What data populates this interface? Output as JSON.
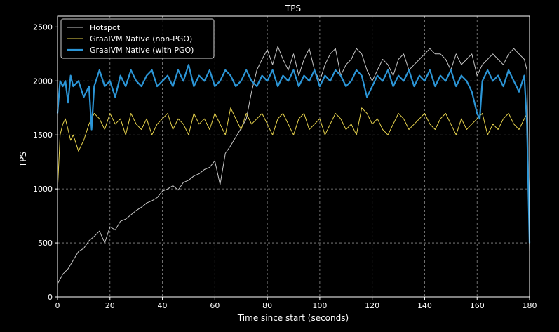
{
  "chart_data": {
    "type": "line",
    "title": "TPS",
    "xlabel": "Time since start (seconds)",
    "ylabel": "TPS",
    "xlim": [
      0,
      180
    ],
    "ylim": [
      0,
      2600
    ],
    "xticks": [
      0,
      20,
      40,
      60,
      80,
      100,
      120,
      140,
      160,
      180
    ],
    "yticks": [
      0,
      500,
      1000,
      1500,
      2000,
      2500
    ],
    "grid": true,
    "legend_position": "top-left",
    "series": [
      {
        "name": "Hotspot",
        "color": "#c8c8c8",
        "x": [
          0,
          2,
          4,
          6,
          8,
          10,
          12,
          14,
          16,
          18,
          20,
          22,
          24,
          26,
          28,
          30,
          32,
          34,
          36,
          38,
          40,
          42,
          44,
          46,
          48,
          50,
          52,
          54,
          56,
          58,
          60,
          62,
          64,
          66,
          68,
          70,
          72,
          74,
          76,
          78,
          80,
          82,
          84,
          86,
          88,
          90,
          92,
          94,
          96,
          98,
          100,
          102,
          104,
          106,
          108,
          110,
          112,
          114,
          116,
          118,
          120,
          122,
          124,
          126,
          128,
          130,
          132,
          134,
          136,
          138,
          140,
          142,
          144,
          146,
          148,
          150,
          152,
          154,
          156,
          158,
          160,
          162,
          164,
          166,
          168,
          170,
          172,
          174,
          176,
          178,
          179,
          180
        ],
        "values": [
          120,
          210,
          260,
          340,
          420,
          450,
          520,
          560,
          610,
          500,
          650,
          620,
          700,
          720,
          760,
          800,
          830,
          870,
          890,
          920,
          980,
          1000,
          1030,
          990,
          1060,
          1080,
          1120,
          1140,
          1180,
          1200,
          1260,
          1040,
          1330,
          1400,
          1480,
          1560,
          1650,
          1900,
          2100,
          2200,
          2290,
          2150,
          2320,
          2200,
          2100,
          2250,
          2050,
          2200,
          2300,
          2100,
          2000,
          2150,
          2250,
          2300,
          2050,
          2150,
          2200,
          2300,
          2250,
          2100,
          2000,
          2100,
          2200,
          2150,
          2050,
          2200,
          2250,
          2100,
          2150,
          2200,
          2250,
          2300,
          2250,
          2250,
          2200,
          2100,
          2250,
          2150,
          2200,
          2250,
          2050,
          2150,
          2200,
          2250,
          2200,
          2150,
          2250,
          2300,
          2250,
          2200,
          2100,
          420
        ]
      },
      {
        "name": "GraalVM Native (non-PGO)",
        "color": "#e8d44d",
        "x": [
          0,
          1,
          2,
          3,
          4,
          5,
          6,
          8,
          10,
          12,
          14,
          16,
          18,
          20,
          22,
          24,
          26,
          28,
          30,
          32,
          34,
          36,
          38,
          40,
          42,
          44,
          46,
          48,
          50,
          52,
          54,
          56,
          58,
          60,
          62,
          64,
          66,
          68,
          70,
          72,
          74,
          76,
          78,
          80,
          82,
          84,
          86,
          88,
          90,
          92,
          94,
          96,
          98,
          100,
          102,
          104,
          106,
          108,
          110,
          112,
          114,
          116,
          118,
          120,
          122,
          124,
          126,
          128,
          130,
          132,
          134,
          136,
          138,
          140,
          142,
          144,
          146,
          148,
          150,
          152,
          154,
          156,
          158,
          160,
          162,
          164,
          166,
          168,
          170,
          172,
          174,
          176,
          178,
          179,
          180
        ],
        "values": [
          980,
          1500,
          1600,
          1650,
          1550,
          1450,
          1500,
          1350,
          1450,
          1600,
          1700,
          1650,
          1550,
          1700,
          1600,
          1650,
          1500,
          1700,
          1600,
          1550,
          1650,
          1500,
          1600,
          1650,
          1700,
          1550,
          1650,
          1600,
          1500,
          1700,
          1600,
          1650,
          1550,
          1700,
          1600,
          1500,
          1750,
          1650,
          1550,
          1700,
          1600,
          1650,
          1700,
          1600,
          1500,
          1650,
          1700,
          1600,
          1500,
          1650,
          1700,
          1550,
          1600,
          1650,
          1500,
          1600,
          1700,
          1650,
          1550,
          1600,
          1500,
          1750,
          1700,
          1600,
          1650,
          1550,
          1500,
          1600,
          1700,
          1650,
          1550,
          1600,
          1650,
          1700,
          1600,
          1550,
          1650,
          1700,
          1600,
          1500,
          1650,
          1550,
          1600,
          1650,
          1700,
          1500,
          1600,
          1550,
          1650,
          1700,
          1600,
          1550,
          1650,
          1700,
          500
        ]
      },
      {
        "name": "GraalVM Native (with PGO)",
        "color": "#2b95d6",
        "x": [
          0,
          1,
          2,
          3,
          4,
          5,
          6,
          8,
          10,
          12,
          13,
          14,
          16,
          18,
          20,
          22,
          24,
          26,
          28,
          30,
          32,
          34,
          36,
          38,
          40,
          42,
          44,
          46,
          48,
          50,
          52,
          54,
          56,
          58,
          60,
          62,
          64,
          66,
          68,
          70,
          72,
          74,
          76,
          78,
          80,
          82,
          84,
          86,
          88,
          90,
          92,
          94,
          96,
          98,
          100,
          102,
          104,
          106,
          108,
          110,
          112,
          114,
          116,
          118,
          120,
          122,
          124,
          126,
          128,
          130,
          132,
          134,
          136,
          138,
          140,
          142,
          144,
          146,
          148,
          150,
          152,
          154,
          156,
          158,
          160,
          161,
          162,
          164,
          166,
          168,
          170,
          172,
          174,
          176,
          178,
          179,
          180
        ],
        "values": [
          1700,
          2000,
          1950,
          2000,
          1800,
          2050,
          1950,
          2000,
          1850,
          1950,
          1550,
          1950,
          2100,
          1950,
          2000,
          1850,
          2050,
          1950,
          2100,
          2000,
          1950,
          2050,
          2100,
          1950,
          2000,
          2050,
          1950,
          2100,
          2000,
          2150,
          1950,
          2050,
          2000,
          2100,
          1950,
          2000,
          2100,
          2050,
          1950,
          2000,
          2100,
          2000,
          1950,
          2050,
          2000,
          2100,
          1950,
          2050,
          2000,
          2100,
          1950,
          2050,
          2000,
          2100,
          1950,
          2050,
          2000,
          2100,
          2050,
          1950,
          2000,
          2100,
          2050,
          1850,
          1950,
          2050,
          2000,
          2100,
          1950,
          2050,
          2000,
          2100,
          1950,
          2050,
          2000,
          2100,
          1950,
          2050,
          2000,
          2100,
          1950,
          2050,
          2000,
          1900,
          1700,
          1650,
          2000,
          2100,
          2000,
          2050,
          1950,
          2100,
          2000,
          1900,
          2050,
          1600,
          500
        ]
      }
    ]
  },
  "colors": {
    "background": "#000000",
    "axes": "#ffffff",
    "grid": "#8a8a8a",
    "text": "#ffffff"
  }
}
